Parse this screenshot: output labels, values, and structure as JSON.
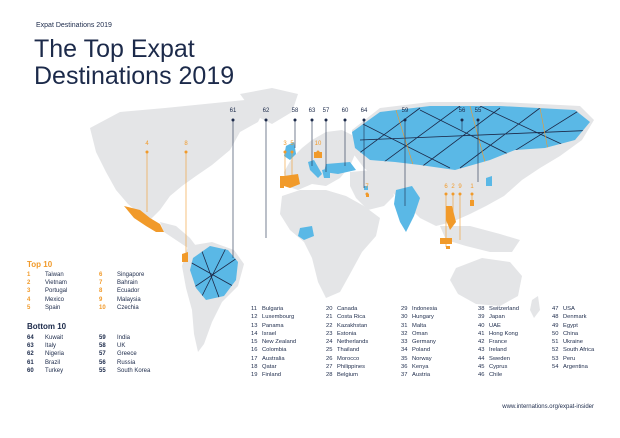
{
  "header": {
    "subtitle": "Expat Destinations 2019",
    "title_line1": "The Top Expat",
    "title_line2": "Destinations 2019"
  },
  "colors": {
    "land": "#e4e5e7",
    "top10": "#f19a2a",
    "bottom10": "#5ab8e6",
    "navy": "#1c2a4a"
  },
  "map_labels": {
    "top": [
      "4",
      "8",
      "3",
      "5",
      "10",
      "7",
      "6",
      "2",
      "9",
      "1"
    ],
    "bottom": [
      "61",
      "62",
      "58",
      "63",
      "57",
      "60",
      "64",
      "59",
      "56",
      "55"
    ]
  },
  "top10": {
    "heading": "Top 10",
    "col1": [
      {
        "n": "1",
        "c": "Taiwan"
      },
      {
        "n": "2",
        "c": "Vietnam"
      },
      {
        "n": "3",
        "c": "Portugal"
      },
      {
        "n": "4",
        "c": "Mexico"
      },
      {
        "n": "5",
        "c": "Spain"
      }
    ],
    "col2": [
      {
        "n": "6",
        "c": "Singapore"
      },
      {
        "n": "7",
        "c": "Bahrain"
      },
      {
        "n": "8",
        "c": "Ecuador"
      },
      {
        "n": "9",
        "c": "Malaysia"
      },
      {
        "n": "10",
        "c": "Czechia"
      }
    ]
  },
  "bottom10": {
    "heading": "Bottom 10",
    "col1": [
      {
        "n": "64",
        "c": "Kuwait"
      },
      {
        "n": "63",
        "c": "Italy"
      },
      {
        "n": "62",
        "c": "Nigeria"
      },
      {
        "n": "61",
        "c": "Brazil"
      },
      {
        "n": "60",
        "c": "Turkey"
      }
    ],
    "col2": [
      {
        "n": "59",
        "c": "India"
      },
      {
        "n": "58",
        "c": "UK"
      },
      {
        "n": "57",
        "c": "Greece"
      },
      {
        "n": "56",
        "c": "Russia"
      },
      {
        "n": "55",
        "c": "South Korea"
      }
    ]
  },
  "middle": [
    [
      {
        "n": "11",
        "c": "Bulgaria"
      },
      {
        "n": "12",
        "c": "Luxembourg"
      },
      {
        "n": "13",
        "c": "Panama"
      },
      {
        "n": "14",
        "c": "Israel"
      },
      {
        "n": "15",
        "c": "New Zealand"
      },
      {
        "n": "16",
        "c": "Colombia"
      },
      {
        "n": "17",
        "c": "Australia"
      },
      {
        "n": "18",
        "c": "Qatar"
      },
      {
        "n": "19",
        "c": "Finland"
      }
    ],
    [
      {
        "n": "20",
        "c": "Canada"
      },
      {
        "n": "21",
        "c": "Costa Rica"
      },
      {
        "n": "22",
        "c": "Kazakhstan"
      },
      {
        "n": "23",
        "c": "Estonia"
      },
      {
        "n": "24",
        "c": "Netherlands"
      },
      {
        "n": "25",
        "c": "Thailand"
      },
      {
        "n": "26",
        "c": "Morocco"
      },
      {
        "n": "27",
        "c": "Philippines"
      },
      {
        "n": "28",
        "c": "Belgium"
      }
    ],
    [
      {
        "n": "29",
        "c": "Indonesia"
      },
      {
        "n": "30",
        "c": "Hungary"
      },
      {
        "n": "31",
        "c": "Malta"
      },
      {
        "n": "32",
        "c": "Oman"
      },
      {
        "n": "33",
        "c": "Germany"
      },
      {
        "n": "34",
        "c": "Poland"
      },
      {
        "n": "35",
        "c": "Norway"
      },
      {
        "n": "36",
        "c": "Kenya"
      },
      {
        "n": "37",
        "c": "Austria"
      }
    ],
    [
      {
        "n": "38",
        "c": "Switzerland"
      },
      {
        "n": "39",
        "c": "Japan"
      },
      {
        "n": "40",
        "c": "UAE"
      },
      {
        "n": "41",
        "c": "Hong Kong"
      },
      {
        "n": "42",
        "c": "France"
      },
      {
        "n": "43",
        "c": "Ireland"
      },
      {
        "n": "44",
        "c": "Sweden"
      },
      {
        "n": "45",
        "c": "Cyprus"
      },
      {
        "n": "46",
        "c": "Chile"
      }
    ],
    [
      {
        "n": "47",
        "c": "USA"
      },
      {
        "n": "48",
        "c": "Denmark"
      },
      {
        "n": "49",
        "c": "Egypt"
      },
      {
        "n": "50",
        "c": "China"
      },
      {
        "n": "51",
        "c": "Ukraine"
      },
      {
        "n": "52",
        "c": "South Africa"
      },
      {
        "n": "53",
        "c": "Peru"
      },
      {
        "n": "54",
        "c": "Argentina"
      }
    ]
  ],
  "footer": {
    "url": "www.internations.org/expat-insider"
  }
}
